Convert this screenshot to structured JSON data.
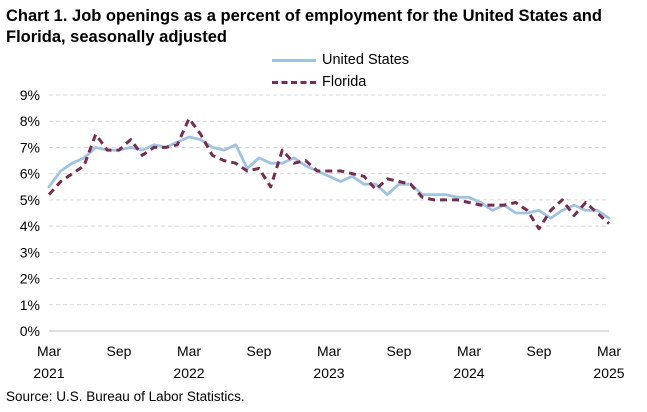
{
  "title": "Chart 1. Job openings as a percent of employment for the United States and Florida, seasonally adjusted",
  "source": "Source: U.S. Bureau of Labor Statistics.",
  "legend": {
    "us": "United States",
    "fl": "Florida"
  },
  "chart_data": {
    "type": "line",
    "title": "Chart 1. Job openings as a percent of employment for the United States and Florida, seasonally adjusted",
    "xlabel": "",
    "ylabel": "",
    "ylim": [
      0,
      9
    ],
    "y_ticks": [
      "0%",
      "1%",
      "2%",
      "3%",
      "4%",
      "5%",
      "6%",
      "7%",
      "8%",
      "9%"
    ],
    "x_ticks": [
      {
        "index": 0,
        "month": "Mar",
        "year": "2021"
      },
      {
        "index": 6,
        "month": "Sep",
        "year": ""
      },
      {
        "index": 12,
        "month": "Mar",
        "year": "2022"
      },
      {
        "index": 18,
        "month": "Sep",
        "year": ""
      },
      {
        "index": 24,
        "month": "Mar",
        "year": "2023"
      },
      {
        "index": 30,
        "month": "Sep",
        "year": ""
      },
      {
        "index": 36,
        "month": "Mar",
        "year": "2024"
      },
      {
        "index": 42,
        "month": "Sep",
        "year": ""
      },
      {
        "index": 48,
        "month": "Mar",
        "year": "2025"
      }
    ],
    "x": [
      "Mar 2021",
      "Apr 2021",
      "May 2021",
      "Jun 2021",
      "Jul 2021",
      "Aug 2021",
      "Sep 2021",
      "Oct 2021",
      "Nov 2021",
      "Dec 2021",
      "Jan 2022",
      "Feb 2022",
      "Mar 2022",
      "Apr 2022",
      "May 2022",
      "Jun 2022",
      "Jul 2022",
      "Aug 2022",
      "Sep 2022",
      "Oct 2022",
      "Nov 2022",
      "Dec 2022",
      "Jan 2023",
      "Feb 2023",
      "Mar 2023",
      "Apr 2023",
      "May 2023",
      "Jun 2023",
      "Jul 2023",
      "Aug 2023",
      "Sep 2023",
      "Oct 2023",
      "Nov 2023",
      "Dec 2023",
      "Jan 2024",
      "Feb 2024",
      "Mar 2024",
      "Apr 2024",
      "May 2024",
      "Jun 2024",
      "Jul 2024",
      "Aug 2024",
      "Sep 2024",
      "Oct 2024",
      "Nov 2024",
      "Dec 2024",
      "Jan 2025",
      "Feb 2025",
      "Mar 2025"
    ],
    "series": [
      {
        "name": "United States",
        "color": "#9dc3e6",
        "dash": "solid",
        "values": [
          5.5,
          6.1,
          6.4,
          6.6,
          7.0,
          6.9,
          6.9,
          7.0,
          6.9,
          7.1,
          7.0,
          7.2,
          7.4,
          7.3,
          7.0,
          6.9,
          7.1,
          6.2,
          6.6,
          6.4,
          6.4,
          6.6,
          6.3,
          6.1,
          5.9,
          5.7,
          5.9,
          5.6,
          5.6,
          5.2,
          5.6,
          5.6,
          5.2,
          5.2,
          5.2,
          5.1,
          5.1,
          4.9,
          4.6,
          4.8,
          4.5,
          4.5,
          4.6,
          4.3,
          4.6,
          4.8,
          4.6,
          4.6,
          4.3
        ]
      },
      {
        "name": "Florida",
        "color": "#7b2c4e",
        "dash": "dashed",
        "values": [
          5.2,
          5.7,
          6.0,
          6.3,
          7.5,
          6.9,
          6.9,
          7.3,
          6.7,
          7.0,
          7.0,
          7.1,
          8.1,
          7.5,
          6.7,
          6.5,
          6.4,
          6.1,
          6.2,
          5.5,
          6.9,
          6.4,
          6.5,
          6.1,
          6.1,
          6.1,
          6.0,
          5.9,
          5.4,
          5.8,
          5.7,
          5.6,
          5.1,
          5.0,
          5.0,
          5.0,
          4.9,
          4.8,
          4.8,
          4.8,
          4.9,
          4.6,
          3.9,
          4.6,
          5.0,
          4.4,
          4.9,
          4.5,
          4.1
        ]
      }
    ]
  }
}
